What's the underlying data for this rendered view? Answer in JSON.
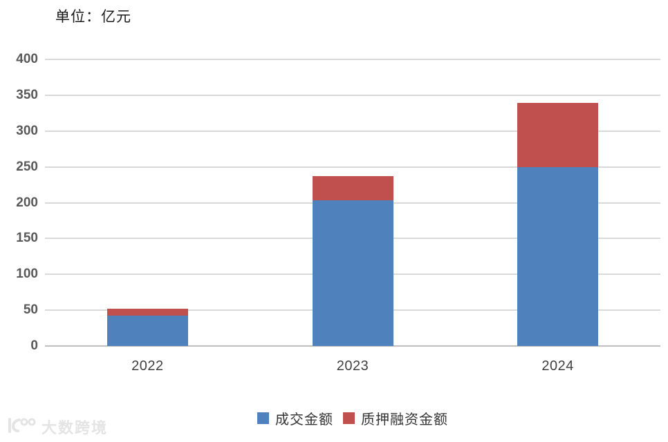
{
  "title": "单位：亿元",
  "chart_data": {
    "type": "bar",
    "stacked": true,
    "title": "单位：亿元",
    "categories": [
      "2022",
      "2023",
      "2024"
    ],
    "series": [
      {
        "name": "成交金额",
        "color": "#4f81bd",
        "values": [
          42,
          203,
          250
        ]
      },
      {
        "name": "质押融资金额",
        "color": "#c0504d",
        "values": [
          10,
          34,
          89
        ]
      }
    ],
    "totals": [
      52,
      237,
      339
    ],
    "xlabel": "",
    "ylabel": "单位：亿元",
    "ylim": [
      0,
      400
    ],
    "ytick_step": 50,
    "yticks": [
      0,
      50,
      100,
      150,
      200,
      250,
      300,
      350,
      400
    ],
    "grid": true,
    "legend_position": "bottom"
  },
  "legend": {
    "items": [
      {
        "label": "成交金额",
        "color": "#4f81bd"
      },
      {
        "label": "质押融资金额",
        "color": "#c0504d"
      }
    ]
  },
  "watermark": {
    "text": "大数跨境"
  },
  "colors": {
    "series_blue": "#4f81bd",
    "series_red": "#c0504d",
    "gridline": "#d9d9d9",
    "axis_line": "#bfbfbf",
    "tick_text": "#595959",
    "watermark": "#e4e4e4"
  }
}
